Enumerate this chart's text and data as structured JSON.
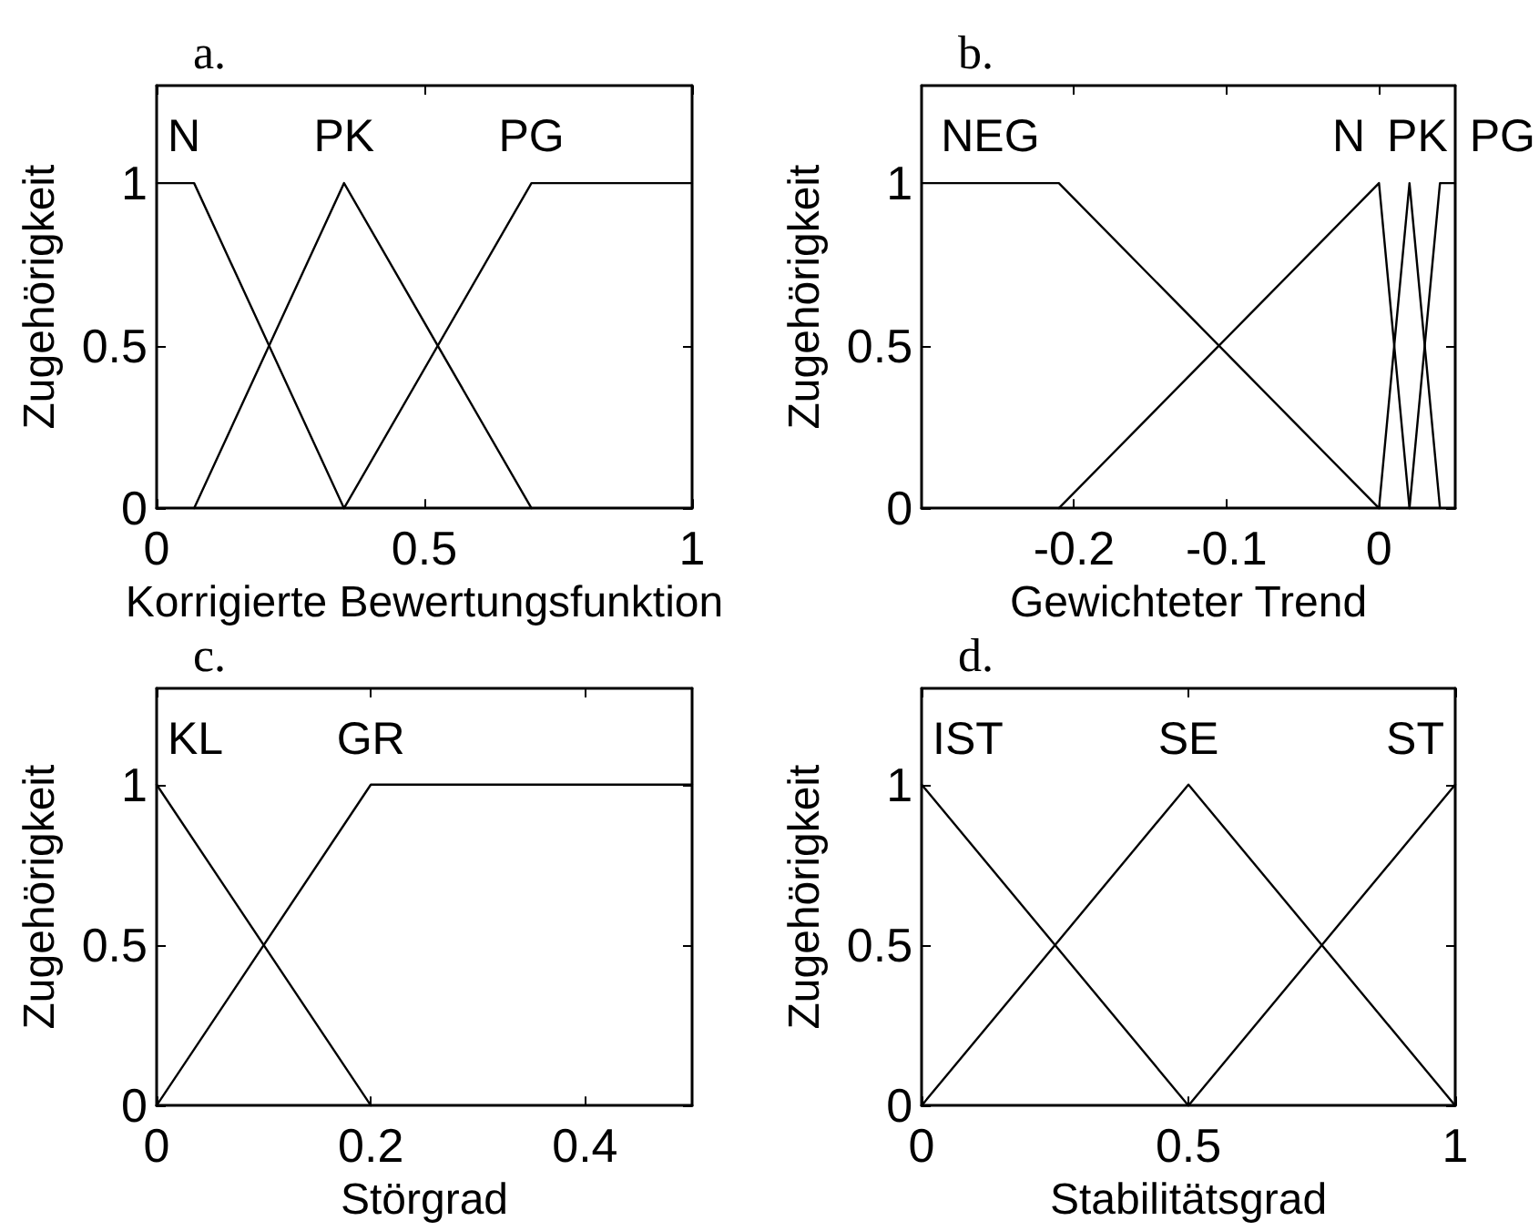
{
  "chart_data": [
    {
      "type": "line",
      "title": "a.",
      "xlabel": "Korrigierte Bewertungsfunktion",
      "ylabel": "Zugehörigkeit",
      "xlim": [
        0,
        1
      ],
      "xticks": [
        0,
        0.5,
        1
      ],
      "ylim": [
        0,
        1.3
      ],
      "yticks": [
        0,
        0.5,
        1
      ],
      "marker": "none",
      "line_style": "solid",
      "legend": "top",
      "series": [
        {
          "name": "N",
          "color": "#000000",
          "x": [
            0,
            0.07,
            0.35
          ],
          "values": [
            1,
            1,
            0
          ]
        },
        {
          "name": "PK",
          "color": "#000000",
          "x": [
            0.07,
            0.35,
            0.7
          ],
          "values": [
            0,
            1,
            0
          ]
        },
        {
          "name": "PG",
          "color": "#000000",
          "x": [
            0.35,
            0.7,
            1
          ],
          "values": [
            0,
            1,
            1
          ]
        }
      ]
    },
    {
      "type": "line",
      "title": "b.",
      "xlabel": "Gewichteter Trend",
      "ylabel": "Zugehörigkeit",
      "xlim": [
        -0.3,
        0.05
      ],
      "xticks": [
        -0.2,
        -0.1,
        0
      ],
      "ylim": [
        0,
        1.3
      ],
      "yticks": [
        0,
        0.5,
        1
      ],
      "marker": "none",
      "line_style": "solid",
      "legend": "top",
      "series": [
        {
          "name": "NEG",
          "color": "#000000",
          "x": [
            -0.3,
            -0.21,
            0
          ],
          "values": [
            1,
            1,
            0
          ]
        },
        {
          "name": "N",
          "color": "#000000",
          "x": [
            -0.21,
            0,
            0.02
          ],
          "values": [
            0,
            1,
            0
          ]
        },
        {
          "name": "PK",
          "color": "#000000",
          "x": [
            0,
            0.02,
            0.04
          ],
          "values": [
            0,
            1,
            0
          ]
        },
        {
          "name": "PG",
          "color": "#000000",
          "x": [
            0.02,
            0.04,
            0.05
          ],
          "values": [
            0,
            1,
            1
          ]
        }
      ]
    },
    {
      "type": "line",
      "title": "c.",
      "xlabel": "Störgrad",
      "ylabel": "Zugehörigkeit",
      "xlim": [
        0,
        0.5
      ],
      "xticks": [
        0,
        0.2,
        0.4
      ],
      "ylim": [
        0,
        1.3
      ],
      "yticks": [
        0,
        0.5,
        1
      ],
      "marker": "none",
      "line_style": "solid",
      "legend": "top",
      "series": [
        {
          "name": "KL",
          "color": "#000000",
          "x": [
            0,
            0.2
          ],
          "values": [
            1,
            0
          ]
        },
        {
          "name": "GR",
          "color": "#000000",
          "x": [
            0,
            0.2,
            0.5
          ],
          "values": [
            0,
            1,
            1
          ]
        }
      ]
    },
    {
      "type": "line",
      "title": "d.",
      "xlabel": "Stabilitätsgrad",
      "ylabel": "Zugehörigkeit",
      "xlim": [
        0,
        1
      ],
      "xticks": [
        0,
        0.5,
        1
      ],
      "ylim": [
        0,
        1.3
      ],
      "yticks": [
        0,
        0.5,
        1
      ],
      "marker": "none",
      "line_style": "solid",
      "legend": "top",
      "series": [
        {
          "name": "IST",
          "color": "#000000",
          "x": [
            0,
            0.5
          ],
          "values": [
            1,
            0
          ]
        },
        {
          "name": "SE",
          "color": "#000000",
          "x": [
            0,
            0.5,
            1
          ],
          "values": [
            0,
            1,
            0
          ]
        },
        {
          "name": "ST",
          "color": "#000000",
          "x": [
            0.5,
            1
          ],
          "values": [
            0,
            1
          ]
        }
      ]
    }
  ]
}
